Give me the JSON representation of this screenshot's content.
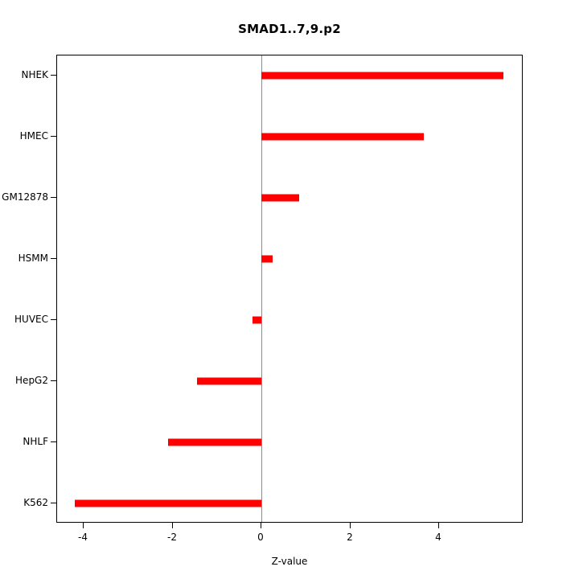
{
  "chart_data": {
    "type": "bar",
    "orientation": "horizontal",
    "title": "SMAD1..7,9.p2",
    "xlabel": "Z-value",
    "ylabel": "",
    "categories": [
      "NHEK",
      "HMEC",
      "GM12878",
      "HSMM",
      "HUVEC",
      "HepG2",
      "NHLF",
      "K562"
    ],
    "values": [
      5.45,
      3.65,
      0.85,
      0.25,
      -0.2,
      -1.45,
      -2.1,
      -4.2
    ],
    "xlim": [
      -4.6,
      5.9
    ],
    "xticks": [
      -4,
      -2,
      0,
      2,
      4
    ],
    "bar_color": "#FF0000",
    "zero_line_color": "#00EE00",
    "axis_color": "#000000",
    "background_color": "#FFFFFF",
    "grid": false,
    "legend": "none"
  }
}
